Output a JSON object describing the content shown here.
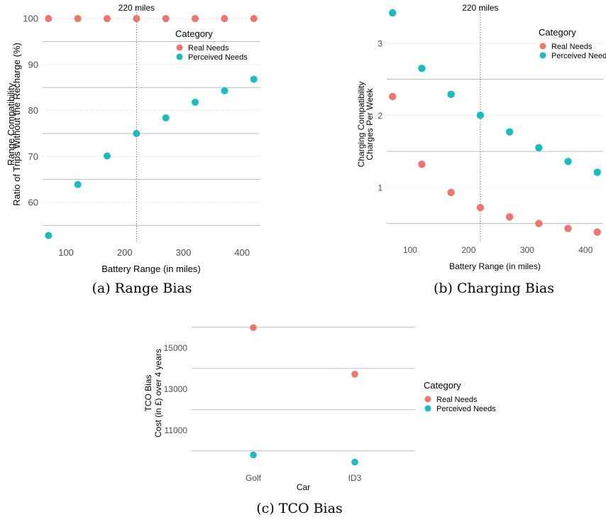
{
  "colors": {
    "real": "#F0756D",
    "perceived": "#18BDC2"
  },
  "legend": {
    "title": "Category",
    "real": "Real Needs",
    "perceived": "Perceived Needs"
  },
  "chart_data": [
    {
      "type": "scatter",
      "caption": "(a) Range Bias",
      "xlabel": "Battery Range (in miles)",
      "ylabel_line1": "Range Compatibility",
      "ylabel_line2": "Ratio of Trips Without the Recharge (%)",
      "xlim": [
        60,
        430
      ],
      "ylim": [
        51.5,
        102.5
      ],
      "x_ticks": [
        100,
        200,
        300,
        400
      ],
      "x_tick_labels": [
        "100",
        "200",
        "300",
        "400"
      ],
      "y_ticks": [
        60,
        70,
        80,
        90,
        100
      ],
      "y_tick_labels": [
        "60",
        "70",
        "80",
        "90",
        "100"
      ],
      "annotation": {
        "x": 220,
        "label": "220 miles"
      },
      "grid": true,
      "legend_position": "top-right",
      "x": [
        70,
        120,
        170,
        220,
        270,
        320,
        370,
        420
      ],
      "series": [
        {
          "name": "Real Needs",
          "values": [
            100,
            100,
            100,
            100,
            100,
            100,
            100,
            100
          ]
        },
        {
          "name": "Perceived Needs",
          "values": [
            52.8,
            63.9,
            70.1,
            75.0,
            78.4,
            81.8,
            84.3,
            86.8
          ]
        }
      ]
    },
    {
      "type": "scatter",
      "caption": "(b) Charging Bias",
      "xlabel": "Battery Range (in miles)",
      "ylabel_line1": "Charging Compatibility",
      "ylabel_line2": "Charges Per Week",
      "xlim": [
        60,
        430
      ],
      "ylim": [
        0.25,
        3.5
      ],
      "x_ticks": [
        100,
        200,
        300,
        400
      ],
      "x_tick_labels": [
        "100",
        "200",
        "300",
        "400"
      ],
      "y_ticks": [
        1,
        2,
        3
      ],
      "y_tick_labels": [
        "1",
        "2",
        "3"
      ],
      "annotation": {
        "x": 220,
        "label": "220 miles"
      },
      "grid": true,
      "legend_position": "top-right",
      "x": [
        70,
        120,
        170,
        220,
        270,
        320,
        370,
        420
      ],
      "series": [
        {
          "name": "Real Needs",
          "values": [
            2.26,
            1.32,
            0.93,
            0.72,
            0.59,
            0.5,
            0.43,
            0.38
          ]
        },
        {
          "name": "Perceived Needs",
          "values": [
            3.42,
            2.65,
            2.29,
            2.0,
            1.77,
            1.55,
            1.36,
            1.21
          ]
        }
      ]
    },
    {
      "type": "scatter",
      "caption": "(c) TCO Bias",
      "xlabel": "Car",
      "ylabel_line1": "TCO Bias",
      "ylabel_line2": "Cost (in £) over 4 years",
      "categories": [
        "Golf",
        "ID3"
      ],
      "ylim": [
        9300,
        16300
      ],
      "y_ticks": [
        11000,
        13000,
        15000
      ],
      "y_tick_labels": [
        "11000",
        "13000",
        "15000"
      ],
      "grid": true,
      "legend_position": "right",
      "series": [
        {
          "name": "Real Needs",
          "values": [
            15980,
            13720
          ]
        },
        {
          "name": "Perceived Needs",
          "values": [
            9800,
            9450
          ]
        }
      ]
    }
  ]
}
